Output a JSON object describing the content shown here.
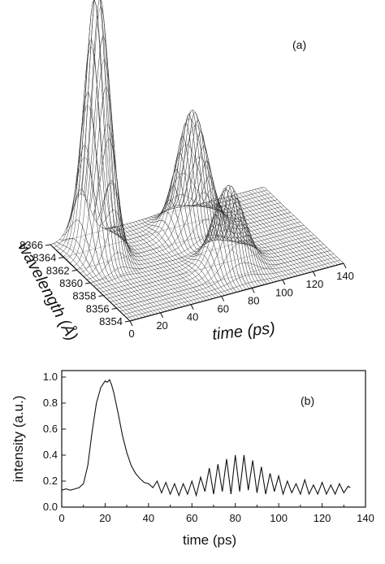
{
  "chart_data": [
    {
      "panel_label": "(a)",
      "type": "surface",
      "xlabel": "time (ps)",
      "ylabel": "wavelength (Å)",
      "x_ticks": [
        "0",
        "20",
        "40",
        "60",
        "80",
        "100",
        "120",
        "140"
      ],
      "y_ticks": [
        "8354",
        "8356",
        "8358",
        "8360",
        "8362",
        "8364",
        "8366"
      ],
      "xlim": [
        0,
        140
      ],
      "ylim": [
        8354,
        8366
      ],
      "grid": "wireframe mesh",
      "features": [
        {
          "t_ps": 20,
          "wavelength_A": 8363.5,
          "relative_height": 1.0
        },
        {
          "t_ps": 80,
          "wavelength_A": 8363,
          "relative_height": 0.45
        },
        {
          "t_ps": 80,
          "wavelength_A": 8357.5,
          "relative_height": 0.3
        }
      ]
    },
    {
      "panel_label": "(b)",
      "type": "line",
      "xlabel": "time (ps)",
      "ylabel": "intensity (a.u.)",
      "x_ticks": [
        "0",
        "20",
        "40",
        "60",
        "80",
        "100",
        "120",
        "140"
      ],
      "y_ticks": [
        "0.0",
        "0.2",
        "0.4",
        "0.6",
        "0.8",
        "1.0"
      ],
      "xlim": [
        0,
        140
      ],
      "ylim": [
        0,
        1.05
      ],
      "series": [
        {
          "x": [
            0,
            2,
            4,
            6,
            8,
            10,
            12,
            14,
            16,
            18,
            20,
            21,
            22,
            23,
            24,
            26,
            28,
            30,
            32,
            34,
            36,
            38,
            40,
            42,
            44,
            46,
            48,
            50,
            52,
            54,
            56,
            58,
            60,
            62,
            64,
            66,
            68,
            70,
            72,
            74,
            76,
            78,
            80,
            82,
            84,
            86,
            88,
            90,
            92,
            94,
            96,
            98,
            100,
            102,
            104,
            106,
            108,
            110,
            112,
            114,
            116,
            118,
            120,
            122,
            124,
            126,
            128,
            130,
            132,
            133
          ],
          "y": [
            0.13,
            0.14,
            0.13,
            0.14,
            0.15,
            0.18,
            0.32,
            0.58,
            0.8,
            0.92,
            0.97,
            0.96,
            0.98,
            0.94,
            0.88,
            0.72,
            0.55,
            0.42,
            0.32,
            0.26,
            0.22,
            0.19,
            0.18,
            0.15,
            0.2,
            0.11,
            0.19,
            0.1,
            0.18,
            0.09,
            0.18,
            0.1,
            0.2,
            0.09,
            0.23,
            0.12,
            0.3,
            0.1,
            0.33,
            0.12,
            0.37,
            0.1,
            0.4,
            0.12,
            0.4,
            0.13,
            0.36,
            0.11,
            0.31,
            0.1,
            0.26,
            0.12,
            0.24,
            0.1,
            0.2,
            0.11,
            0.18,
            0.1,
            0.21,
            0.1,
            0.17,
            0.1,
            0.19,
            0.1,
            0.17,
            0.1,
            0.18,
            0.11,
            0.16,
            0.15
          ]
        }
      ]
    }
  ]
}
